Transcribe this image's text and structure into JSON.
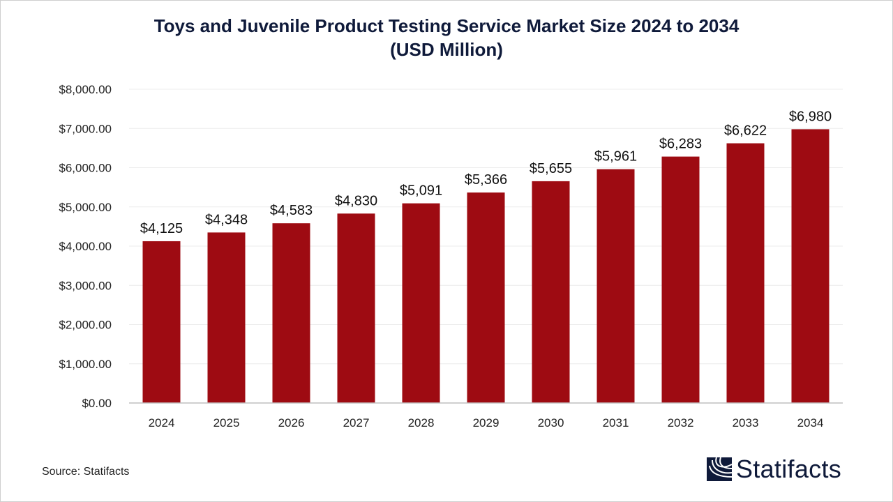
{
  "chart_data": {
    "type": "bar",
    "title": "Toys and Juvenile Product Testing Service Market Size 2024 to 2034",
    "subtitle": "(USD Million)",
    "categories": [
      "2024",
      "2025",
      "2026",
      "2027",
      "2028",
      "2029",
      "2030",
      "2031",
      "2032",
      "2033",
      "2034"
    ],
    "values": [
      4125,
      4348,
      4583,
      4830,
      5091,
      5366,
      5655,
      5961,
      6283,
      6622,
      6980
    ],
    "data_labels": [
      "$4,125",
      "$4,348",
      "$4,583",
      "$4,830",
      "$5,091",
      "$5,366",
      "$5,655",
      "$5,961",
      "$6,283",
      "$6,622",
      "$6,980"
    ],
    "ylim": [
      0,
      8000
    ],
    "yticks": [
      0,
      1000,
      2000,
      3000,
      4000,
      5000,
      6000,
      7000,
      8000
    ],
    "ytick_labels": [
      "$0.00",
      "$1,000.00",
      "$2,000.00",
      "$3,000.00",
      "$4,000.00",
      "$5,000.00",
      "$6,000.00",
      "$7,000.00",
      "$8,000.00"
    ],
    "xlabel": "",
    "ylabel": "",
    "grid": true,
    "bar_color": "#9e0b12"
  },
  "source": "Source: Statifacts",
  "logo": "Statifacts"
}
